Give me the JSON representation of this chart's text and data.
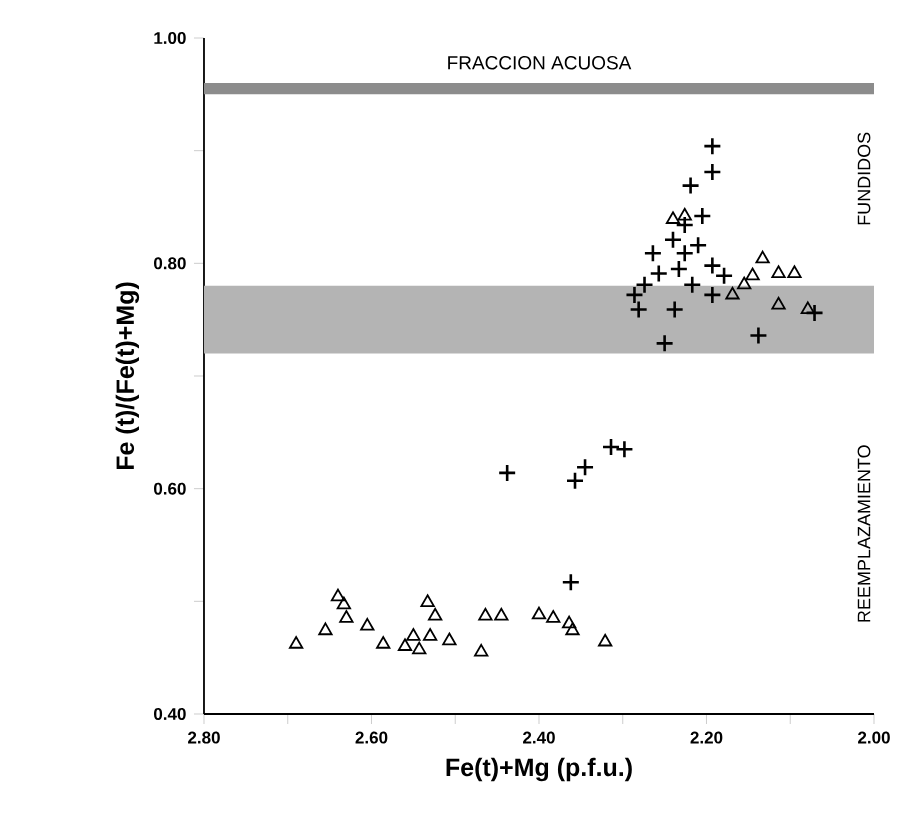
{
  "chart_data": {
    "type": "scatter",
    "xlabel": "Fe(t)+Mg (p.f.u.)",
    "ylabel": "Fe (t)/(Fe(t)+Mg)",
    "xlim": [
      2.8,
      2.0
    ],
    "xticks": [
      {
        "value": 2.8,
        "label": "2.80"
      },
      {
        "value": 2.7,
        "label": null
      },
      {
        "value": 2.6,
        "label": "2.60"
      },
      {
        "value": 2.5,
        "label": null
      },
      {
        "value": 2.4,
        "label": "2.40"
      },
      {
        "value": 2.3,
        "label": null
      },
      {
        "value": 2.2,
        "label": "2.20"
      },
      {
        "value": 2.1,
        "label": null
      },
      {
        "value": 2.0,
        "label": "2.00"
      }
    ],
    "ylim": [
      0.4,
      1.0
    ],
    "yticks": [
      {
        "value": 0.4,
        "label": "0.40"
      },
      {
        "value": 0.5,
        "label": null
      },
      {
        "value": 0.6,
        "label": "0.60"
      },
      {
        "value": 0.7,
        "label": null
      },
      {
        "value": 0.8,
        "label": "0.80"
      },
      {
        "value": 0.9,
        "label": null
      },
      {
        "value": 1.0,
        "label": "1.00"
      }
    ],
    "bands": [
      {
        "axis": "y",
        "from": 0.95,
        "to": 0.96,
        "label": "FRACCION ACUOSA",
        "color": "#8c8c8c"
      },
      {
        "axis": "y",
        "from": 0.72,
        "to": 0.78,
        "color": "#b4b4b4"
      }
    ],
    "annotations": [
      "FUNDIDOS",
      "REEMPLAZAMIENTO"
    ],
    "series": [
      {
        "marker": "triangle",
        "color": "#000000",
        "x": [
          2.69,
          2.655,
          2.64,
          2.633,
          2.63,
          2.605,
          2.586,
          2.56,
          2.55,
          2.543,
          2.533,
          2.524,
          2.53,
          2.507,
          2.469,
          2.464,
          2.445,
          2.4,
          2.383,
          2.364,
          2.36,
          2.321,
          2.226,
          2.24,
          2.133,
          2.114,
          2.095,
          2.155,
          2.145,
          2.114,
          2.079,
          2.169
        ],
        "values": [
          0.462,
          0.474,
          0.504,
          0.497,
          0.485,
          0.478,
          0.462,
          0.46,
          0.469,
          0.457,
          0.499,
          0.487,
          0.469,
          0.465,
          0.455,
          0.487,
          0.487,
          0.488,
          0.485,
          0.48,
          0.474,
          0.464,
          0.842,
          0.839,
          0.804,
          0.791,
          0.791,
          0.781,
          0.789,
          0.763,
          0.759,
          0.772
        ]
      },
      {
        "marker": "cross",
        "color": "#000000",
        "x": [
          2.438,
          2.357,
          2.345,
          2.314,
          2.298,
          2.362,
          2.193,
          2.193,
          2.219,
          2.205,
          2.226,
          2.24,
          2.264,
          2.21,
          2.257,
          2.233,
          2.193,
          2.179,
          2.217,
          2.274,
          2.286,
          2.281,
          2.238,
          2.25,
          2.138,
          2.071,
          2.193,
          2.226
        ],
        "values": [
          0.614,
          0.607,
          0.619,
          0.637,
          0.635,
          0.517,
          0.904,
          0.881,
          0.869,
          0.842,
          0.834,
          0.821,
          0.809,
          0.816,
          0.791,
          0.795,
          0.798,
          0.789,
          0.781,
          0.781,
          0.772,
          0.759,
          0.759,
          0.729,
          0.736,
          0.756,
          0.772,
          0.809
        ]
      }
    ]
  }
}
